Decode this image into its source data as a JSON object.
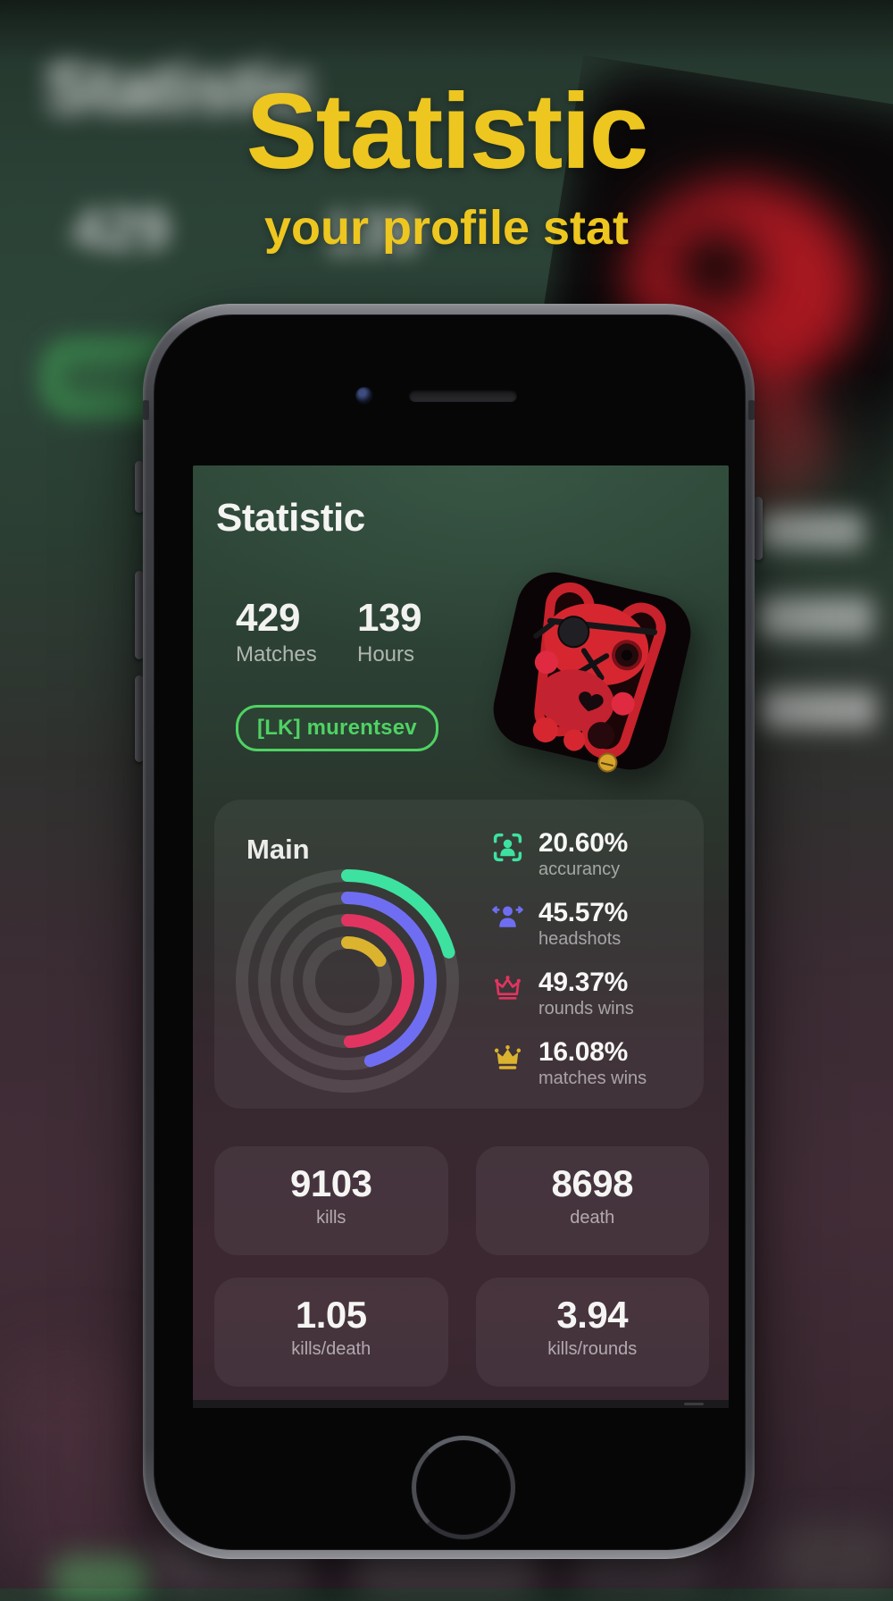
{
  "hero": {
    "title": "Statistic",
    "subtitle": "your profile stat"
  },
  "colors": {
    "hero_accent": "#edc61f",
    "badge_green": "#4fd264",
    "ring_track": "rgba(255,255,255,0.10)"
  },
  "screen": {
    "title": "Statistic",
    "summary": [
      {
        "value": "429",
        "label": "Matches"
      },
      {
        "value": "139",
        "label": "Hours"
      }
    ],
    "player_badge": "[LK] murentsev",
    "avatar_icon": "voodoo-bunny-avatar",
    "main_card": {
      "title": "Main",
      "metrics": [
        {
          "value": "20.60%",
          "percent": 20.6,
          "label": "accurancy",
          "icon": "person-viewfinder-icon",
          "color": "#3ee2a0"
        },
        {
          "value": "45.57%",
          "percent": 45.57,
          "label": "headshots",
          "icon": "person-arrows-icon",
          "color": "#6f6ef2"
        },
        {
          "value": "49.37%",
          "percent": 49.37,
          "label": "rounds wins",
          "icon": "crown-outline-icon",
          "color": "#e23460"
        },
        {
          "value": "16.08%",
          "percent": 16.08,
          "label": "matches wins",
          "icon": "crown-filled-icon",
          "color": "#dcb32f"
        }
      ]
    },
    "stat_cards": [
      {
        "value": "9103",
        "label": "kills"
      },
      {
        "value": "8698",
        "label": "death"
      },
      {
        "value": "1.05",
        "label": "kills/death"
      },
      {
        "value": "3.94",
        "label": "kills/rounds"
      }
    ]
  },
  "chart_data": {
    "type": "radial-rings",
    "categories": [
      "accurancy",
      "headshots",
      "rounds wins",
      "matches wins"
    ],
    "values": [
      20.6,
      45.57,
      49.37,
      16.08
    ],
    "unit": "%",
    "title": "Main",
    "ring_order_outer_to_inner": [
      "accurancy",
      "headshots",
      "rounds wins",
      "matches wins"
    ],
    "start_angle": "12 o'clock, clockwise"
  }
}
